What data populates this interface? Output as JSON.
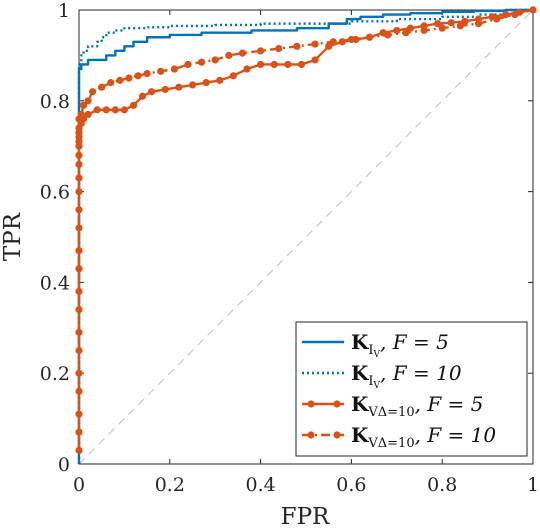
{
  "chart_data": {
    "type": "line",
    "xlabel": "FPR",
    "ylabel": "TPR",
    "xlim": [
      0,
      1
    ],
    "ylim": [
      0,
      1
    ],
    "x_ticks": [
      "0",
      "0.2",
      "0.4",
      "0.6",
      "0.8",
      "1"
    ],
    "y_ticks": [
      "0",
      "0.2",
      "0.4",
      "0.6",
      "0.8",
      "1"
    ],
    "legend_position": "bottom-right",
    "diagonal_reference": true,
    "series": [
      {
        "name_main": "K",
        "name_sub": "I",
        "name_subsub": "V",
        "name_suffix": ", F = 5",
        "color": "#0072BD",
        "style": "solid",
        "marker": "none",
        "x": [
          0,
          0,
          0.005,
          0.005,
          0.02,
          0.02,
          0.06,
          0.06,
          0.08,
          0.08,
          0.1,
          0.1,
          0.12,
          0.12,
          0.15,
          0.15,
          0.2,
          0.2,
          0.27,
          0.27,
          0.38,
          0.38,
          0.48,
          0.48,
          0.55,
          0.55,
          0.59,
          0.59,
          0.62,
          0.62,
          0.67,
          0.67,
          0.73,
          0.73,
          0.8,
          0.8,
          0.87,
          0.87,
          0.94,
          0.94,
          1.0
        ],
        "y": [
          0,
          0.87,
          0.87,
          0.88,
          0.88,
          0.89,
          0.89,
          0.9,
          0.9,
          0.91,
          0.91,
          0.92,
          0.92,
          0.93,
          0.93,
          0.94,
          0.94,
          0.945,
          0.945,
          0.95,
          0.95,
          0.955,
          0.955,
          0.96,
          0.96,
          0.97,
          0.97,
          0.98,
          0.98,
          0.985,
          0.985,
          0.99,
          0.99,
          0.993,
          0.993,
          0.996,
          0.996,
          0.998,
          0.998,
          1.0,
          1.0
        ]
      },
      {
        "name_main": "K",
        "name_sub": "I",
        "name_subsub": "V",
        "name_suffix": ", F = 10",
        "color": "#0072BD",
        "style": "dotted",
        "marker": "none",
        "x": [
          0,
          0,
          0.005,
          0.005,
          0.01,
          0.01,
          0.02,
          0.02,
          0.04,
          0.04,
          0.05,
          0.05,
          0.06,
          0.06,
          0.08,
          0.08,
          0.1,
          0.1,
          0.15,
          0.15,
          0.2,
          0.2,
          0.3,
          0.3,
          0.4,
          0.4,
          0.5,
          0.5,
          0.6,
          0.6,
          0.7,
          0.7,
          0.8,
          0.8,
          0.88,
          0.88,
          0.95,
          0.95,
          1.0
        ],
        "y": [
          0,
          0.88,
          0.88,
          0.9,
          0.9,
          0.91,
          0.91,
          0.92,
          0.92,
          0.93,
          0.93,
          0.94,
          0.94,
          0.95,
          0.95,
          0.955,
          0.955,
          0.96,
          0.96,
          0.962,
          0.962,
          0.965,
          0.965,
          0.967,
          0.967,
          0.97,
          0.97,
          0.97,
          0.97,
          0.975,
          0.975,
          0.98,
          0.98,
          0.985,
          0.985,
          0.99,
          0.99,
          1.0,
          1.0
        ]
      },
      {
        "name_main": "K",
        "name_sub": "VΔ=10",
        "name_subsub": "",
        "name_suffix": ", F = 5",
        "color": "#D95319",
        "style": "solid",
        "marker": "circle",
        "x": [
          0,
          0,
          0,
          0,
          0,
          0,
          0,
          0,
          0,
          0,
          0,
          0,
          0,
          0,
          0,
          0,
          0,
          0,
          0,
          0,
          0,
          0,
          0.005,
          0.01,
          0.02,
          0.04,
          0.06,
          0.08,
          0.1,
          0.12,
          0.14,
          0.16,
          0.19,
          0.22,
          0.25,
          0.28,
          0.31,
          0.34,
          0.37,
          0.4,
          0.43,
          0.46,
          0.49,
          0.52,
          0.55,
          0.58,
          0.61,
          0.64,
          0.67,
          0.7,
          0.73,
          0.76,
          0.79,
          0.82,
          0.85,
          0.88,
          0.91,
          0.94,
          0.97,
          1.0
        ],
        "y": [
          0.03,
          0.07,
          0.11,
          0.16,
          0.2,
          0.25,
          0.29,
          0.34,
          0.38,
          0.43,
          0.47,
          0.52,
          0.56,
          0.6,
          0.63,
          0.66,
          0.68,
          0.7,
          0.71,
          0.72,
          0.73,
          0.74,
          0.75,
          0.76,
          0.77,
          0.78,
          0.78,
          0.78,
          0.78,
          0.79,
          0.81,
          0.82,
          0.825,
          0.83,
          0.835,
          0.84,
          0.845,
          0.855,
          0.87,
          0.88,
          0.88,
          0.88,
          0.88,
          0.89,
          0.92,
          0.93,
          0.935,
          0.94,
          0.95,
          0.955,
          0.96,
          0.965,
          0.97,
          0.972,
          0.975,
          0.98,
          0.985,
          0.99,
          0.995,
          1.0
        ]
      },
      {
        "name_main": "K",
        "name_sub": "VΔ=10",
        "name_subsub": "",
        "name_suffix": ", F = 10",
        "color": "#D95319",
        "style": "dashdot",
        "marker": "circle",
        "x": [
          0,
          0,
          0.005,
          0.01,
          0.02,
          0.03,
          0.05,
          0.07,
          0.09,
          0.11,
          0.13,
          0.15,
          0.18,
          0.21,
          0.24,
          0.27,
          0.3,
          0.33,
          0.36,
          0.4,
          0.44,
          0.48,
          0.52,
          0.56,
          0.6,
          0.64,
          0.68,
          0.72,
          0.76,
          0.8,
          0.84,
          0.88,
          0.92,
          0.96,
          1.0
        ],
        "y": [
          0.73,
          0.76,
          0.77,
          0.79,
          0.8,
          0.82,
          0.83,
          0.84,
          0.845,
          0.85,
          0.855,
          0.86,
          0.865,
          0.87,
          0.88,
          0.885,
          0.89,
          0.9,
          0.905,
          0.91,
          0.915,
          0.92,
          0.925,
          0.93,
          0.935,
          0.94,
          0.945,
          0.95,
          0.955,
          0.96,
          0.965,
          0.97,
          0.98,
          0.99,
          1.0
        ]
      }
    ]
  }
}
